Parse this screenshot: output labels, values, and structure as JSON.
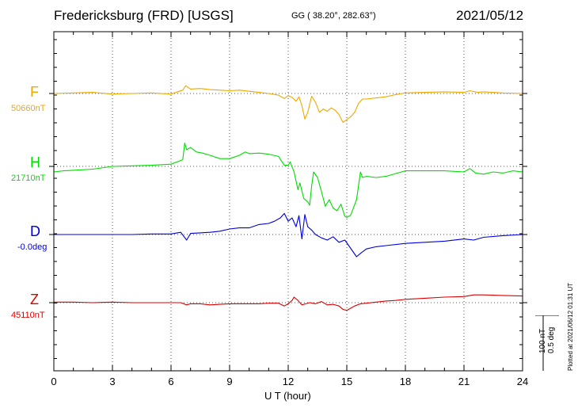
{
  "header": {
    "station": "Fredericksburg (FRD)  [USGS]",
    "coords": "GG ( 38.20°, 282.63°)",
    "date": "2021/05/12"
  },
  "side": {
    "scale_nt": "100 nT",
    "scale_deg": "0.5 deg",
    "plotted": "Plotted at 2021/06/12 01:31  UT"
  },
  "chart_data": {
    "type": "line",
    "xlabel": "U T (hour)",
    "xlim": [
      0,
      24
    ],
    "xticks": [
      0,
      3,
      6,
      9,
      12,
      15,
      18,
      21,
      24
    ],
    "grid": true,
    "scale_bar": {
      "nT": 100,
      "deg": 0.5
    },
    "series": [
      {
        "name": "F",
        "baseline": "50660nT",
        "color": "#f0a800",
        "x": [
          0,
          1,
          2,
          3,
          4,
          5,
          6,
          6.6,
          6.75,
          7,
          7.5,
          8,
          8.5,
          9,
          9.5,
          10,
          10.5,
          11,
          11.5,
          11.8,
          12,
          12.2,
          12.4,
          12.55,
          12.7,
          12.85,
          13,
          13.2,
          13.4,
          13.6,
          13.8,
          14,
          14.2,
          14.4,
          14.6,
          14.8,
          15,
          15.2,
          15.4,
          15.6,
          15.8,
          16,
          16.5,
          17,
          17.5,
          18,
          19,
          20,
          21,
          21.3,
          21.7,
          22,
          23,
          24
        ],
        "y": [
          0,
          1,
          2,
          -1,
          0,
          1,
          -1,
          6,
          14,
          8,
          9,
          7,
          6,
          5,
          6,
          4,
          2,
          0,
          -3,
          -9,
          -4,
          -7,
          -14,
          -6,
          -22,
          -46,
          -34,
          -5,
          -16,
          -34,
          -28,
          -32,
          -26,
          -30,
          -38,
          -52,
          -47,
          -42,
          -34,
          -18,
          -10,
          -10,
          -8,
          -6,
          -2,
          1,
          2,
          3,
          2,
          5,
          2,
          3,
          1,
          0
        ]
      },
      {
        "name": "H",
        "baseline": "21710nT",
        "color": "#00dd00",
        "x": [
          0,
          0.5,
          1,
          2,
          3,
          4,
          5,
          6,
          6.6,
          6.7,
          6.8,
          7,
          7.3,
          7.6,
          8,
          8.5,
          9,
          9.5,
          9.8,
          10,
          10.5,
          11,
          11.5,
          11.8,
          12,
          12.1,
          12.3,
          12.5,
          12.6,
          12.8,
          13,
          13.1,
          13.2,
          13.3,
          13.5,
          13.7,
          13.9,
          14.1,
          14.3,
          14.5,
          14.7,
          14.9,
          15,
          15.2,
          15.5,
          15.7,
          15.8,
          16,
          16.5,
          17,
          18,
          19,
          20,
          21,
          21.3,
          21.6,
          22,
          22.5,
          23,
          23.5,
          24
        ],
        "y": [
          -10,
          -8,
          -7,
          -5,
          0,
          1,
          2,
          4,
          12,
          42,
          30,
          34,
          26,
          24,
          20,
          14,
          14,
          20,
          26,
          23,
          24,
          22,
          18,
          2,
          2,
          8,
          -10,
          -42,
          -30,
          -58,
          -64,
          -70,
          -35,
          -10,
          -20,
          -45,
          -72,
          -60,
          -75,
          -80,
          -68,
          -90,
          -92,
          -88,
          -60,
          -10,
          -20,
          -18,
          -20,
          -18,
          -8,
          -8,
          -8,
          -10,
          -4,
          -12,
          -14,
          -10,
          -12,
          -8,
          -10
        ]
      },
      {
        "name": "D",
        "baseline": "-0.0deg",
        "color": "#0000dd",
        "x": [
          0,
          1,
          2,
          3,
          4,
          5,
          6,
          6.5,
          6.8,
          7,
          7.5,
          8,
          8.5,
          9,
          9.5,
          10,
          10.5,
          11,
          11.3,
          11.6,
          11.8,
          12,
          12.2,
          12.4,
          12.55,
          12.7,
          12.85,
          13,
          13.2,
          13.4,
          13.7,
          14,
          14.3,
          14.6,
          14.9,
          15.1,
          15.3,
          15.5,
          15.7,
          16,
          16.5,
          17,
          18,
          19,
          20,
          21,
          21.5,
          22,
          23,
          24
        ],
        "y": [
          0,
          0,
          0,
          0,
          0,
          1,
          1,
          4,
          -10,
          2,
          3,
          4,
          6,
          10,
          12,
          12,
          18,
          20,
          24,
          30,
          38,
          24,
          30,
          14,
          34,
          -8,
          36,
          14,
          8,
          0,
          -6,
          -10,
          -4,
          -14,
          -10,
          -20,
          -30,
          -40,
          -34,
          -26,
          -22,
          -20,
          -16,
          -14,
          -12,
          -8,
          -10,
          -5,
          -2,
          0
        ]
      },
      {
        "name": "Z",
        "baseline": "45110nT",
        "color": "#dd0000",
        "x": [
          0,
          1,
          2,
          3,
          4,
          5,
          6,
          6.5,
          6.8,
          7,
          7.5,
          8,
          8.5,
          9,
          9.5,
          10,
          10.5,
          11,
          11.5,
          11.8,
          12,
          12.2,
          12.3,
          12.5,
          12.7,
          12.9,
          13.1,
          13.4,
          13.7,
          14,
          14.3,
          14.6,
          14.8,
          15,
          15.2,
          15.4,
          15.7,
          16,
          16.5,
          17,
          17.5,
          18,
          19,
          20,
          21,
          21.5,
          22,
          23,
          24
        ],
        "y": [
          1,
          1,
          0,
          1,
          0,
          0,
          0,
          0,
          -4,
          -2,
          -2,
          -4,
          -3,
          -2,
          -2,
          -2,
          -2,
          -1,
          -1,
          -6,
          -2,
          4,
          10,
          4,
          -4,
          -2,
          0,
          -2,
          2,
          -4,
          -3,
          -6,
          -12,
          -14,
          -10,
          -6,
          -2,
          -1,
          1,
          3,
          4,
          6,
          8,
          10,
          11,
          14,
          14,
          13,
          12
        ]
      }
    ]
  }
}
